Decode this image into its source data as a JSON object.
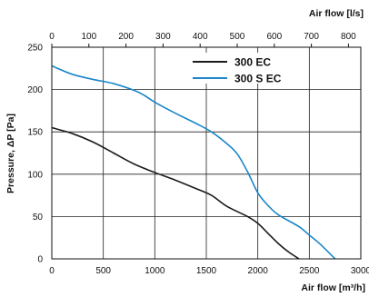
{
  "chart_data": {
    "type": "line",
    "x_label_bottom": "Air flow [m³/h]",
    "x_label_top": "Air flow [l/s]",
    "y_label": "Pressure, ΔP [Pa]",
    "xlim": [
      0,
      3000
    ],
    "ylim": [
      0,
      250
    ],
    "x_ticks": [
      0,
      500,
      1000,
      1500,
      2000,
      2500,
      3000
    ],
    "y_ticks": [
      0,
      50,
      100,
      150,
      200,
      250
    ],
    "top_ticks": [
      0,
      100,
      200,
      300,
      400,
      500,
      600,
      700,
      800
    ],
    "grid": true,
    "legend_position": "top-right",
    "series": [
      {
        "name": "300 EC",
        "color": "#1a1a1a",
        "points": [
          [
            0,
            155
          ],
          [
            200,
            148
          ],
          [
            400,
            138
          ],
          [
            600,
            125
          ],
          [
            800,
            112
          ],
          [
            1000,
            102
          ],
          [
            1200,
            93
          ],
          [
            1400,
            83
          ],
          [
            1550,
            75
          ],
          [
            1700,
            62
          ],
          [
            1900,
            50
          ],
          [
            2000,
            42
          ],
          [
            2100,
            30
          ],
          [
            2200,
            18
          ],
          [
            2300,
            8
          ],
          [
            2400,
            0
          ]
        ]
      },
      {
        "name": "300 S EC",
        "color": "#1a86c8",
        "points": [
          [
            0,
            228
          ],
          [
            200,
            218
          ],
          [
            400,
            212
          ],
          [
            600,
            207
          ],
          [
            800,
            199
          ],
          [
            900,
            193
          ],
          [
            1000,
            185
          ],
          [
            1200,
            172
          ],
          [
            1400,
            160
          ],
          [
            1550,
            150
          ],
          [
            1700,
            136
          ],
          [
            1800,
            124
          ],
          [
            1900,
            103
          ],
          [
            2000,
            78
          ],
          [
            2100,
            63
          ],
          [
            2200,
            52
          ],
          [
            2400,
            38
          ],
          [
            2500,
            28
          ],
          [
            2600,
            18
          ],
          [
            2750,
            0
          ]
        ]
      }
    ]
  }
}
